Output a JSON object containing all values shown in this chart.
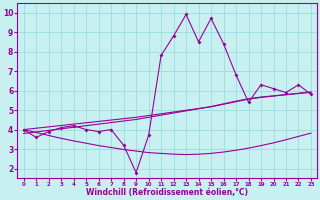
{
  "xlabel": "Windchill (Refroidissement éolien,°C)",
  "bg_color": "#c8f0f0",
  "grid_color": "#99dddd",
  "line_color": "#990099",
  "x_hours": [
    0,
    1,
    2,
    3,
    4,
    5,
    6,
    7,
    8,
    9,
    10,
    11,
    12,
    13,
    14,
    15,
    16,
    17,
    18,
    19,
    20,
    21,
    22,
    23
  ],
  "y_main": [
    4.0,
    3.6,
    3.9,
    4.1,
    4.2,
    4.0,
    3.9,
    4.0,
    3.2,
    1.8,
    3.7,
    7.8,
    8.8,
    9.9,
    8.5,
    9.7,
    8.4,
    6.8,
    5.4,
    6.3,
    6.1,
    5.9,
    6.3,
    5.8
  ],
  "y_trend_up1": [
    4.0,
    4.07,
    4.14,
    4.21,
    4.28,
    4.35,
    4.42,
    4.49,
    4.56,
    4.63,
    4.72,
    4.81,
    4.9,
    4.99,
    5.08,
    5.17,
    5.3,
    5.43,
    5.56,
    5.65,
    5.72,
    5.79,
    5.86,
    5.93
  ],
  "y_trend_up2": [
    3.8,
    3.88,
    3.96,
    4.04,
    4.12,
    4.2,
    4.28,
    4.36,
    4.44,
    4.52,
    4.63,
    4.74,
    4.85,
    4.96,
    5.07,
    5.18,
    5.32,
    5.46,
    5.58,
    5.67,
    5.73,
    5.79,
    5.85,
    5.91
  ],
  "y_trend_down": [
    4.0,
    3.85,
    3.7,
    3.55,
    3.42,
    3.3,
    3.18,
    3.08,
    2.98,
    2.9,
    2.82,
    2.78,
    2.74,
    2.72,
    2.74,
    2.78,
    2.85,
    2.94,
    3.05,
    3.18,
    3.32,
    3.48,
    3.65,
    3.82
  ],
  "ylim": [
    1.5,
    10.5
  ],
  "yticks": [
    2,
    3,
    4,
    5,
    6,
    7,
    8,
    9,
    10
  ],
  "xticks": [
    0,
    1,
    2,
    3,
    4,
    5,
    6,
    7,
    8,
    9,
    10,
    11,
    12,
    13,
    14,
    15,
    16,
    17,
    18,
    19,
    20,
    21,
    22,
    23
  ]
}
